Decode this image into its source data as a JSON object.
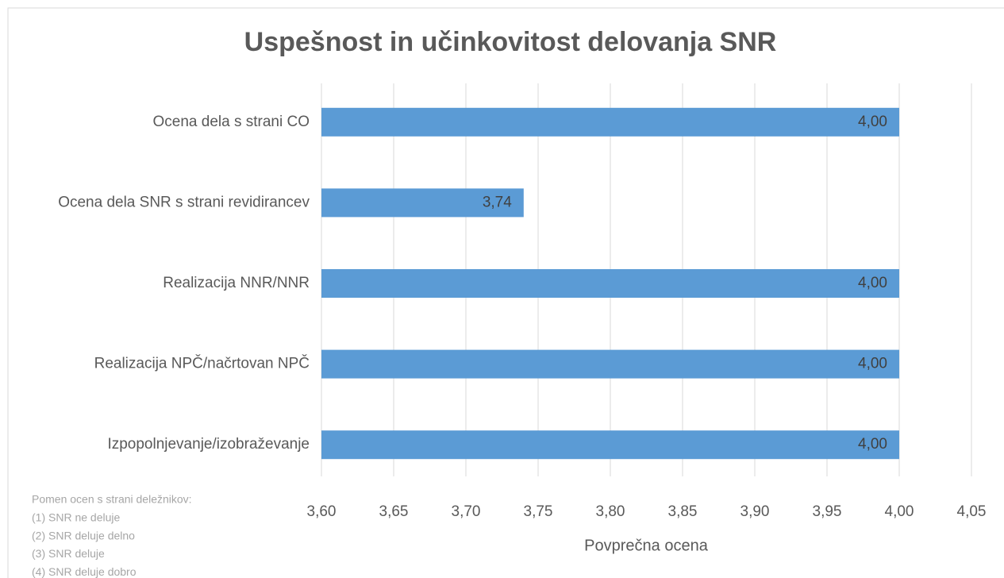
{
  "chart_data": {
    "type": "bar",
    "orientation": "horizontal",
    "title": "Uspešnost in učinkovitost delovanja SNR",
    "categories": [
      "Ocena dela s strani CO",
      "Ocena dela SNR s strani revidirancev",
      "Realizacija NNR/NNR",
      "Realizacija NPČ/načrtovan NPČ",
      "Izpopolnjevanje/izobraževanje"
    ],
    "values": [
      4.0,
      3.74,
      4.0,
      4.0,
      4.0
    ],
    "value_labels": [
      "4,00",
      "3,74",
      "4,00",
      "4,00",
      "4,00"
    ],
    "color": "#5b9bd5",
    "xlabel": "Povprečna ocena",
    "xlim": [
      3.6,
      4.05
    ],
    "xticks": [
      {
        "value": 3.6,
        "label": "3,60"
      },
      {
        "value": 3.65,
        "label": "3,65"
      },
      {
        "value": 3.7,
        "label": "3,70"
      },
      {
        "value": 3.75,
        "label": "3,75"
      },
      {
        "value": 3.8,
        "label": "3,80"
      },
      {
        "value": 3.85,
        "label": "3,85"
      },
      {
        "value": 3.9,
        "label": "3,90"
      },
      {
        "value": 3.95,
        "label": "3,95"
      },
      {
        "value": 4.0,
        "label": "4,00"
      },
      {
        "value": 4.05,
        "label": "4,05"
      }
    ],
    "grid": true,
    "note": [
      "Pomen ocen s strani deležnikov:",
      "(1) SNR ne deluje",
      "(2) SNR deluje delno",
      "(3) SNR deluje",
      "(4) SNR deluje dobro"
    ]
  }
}
